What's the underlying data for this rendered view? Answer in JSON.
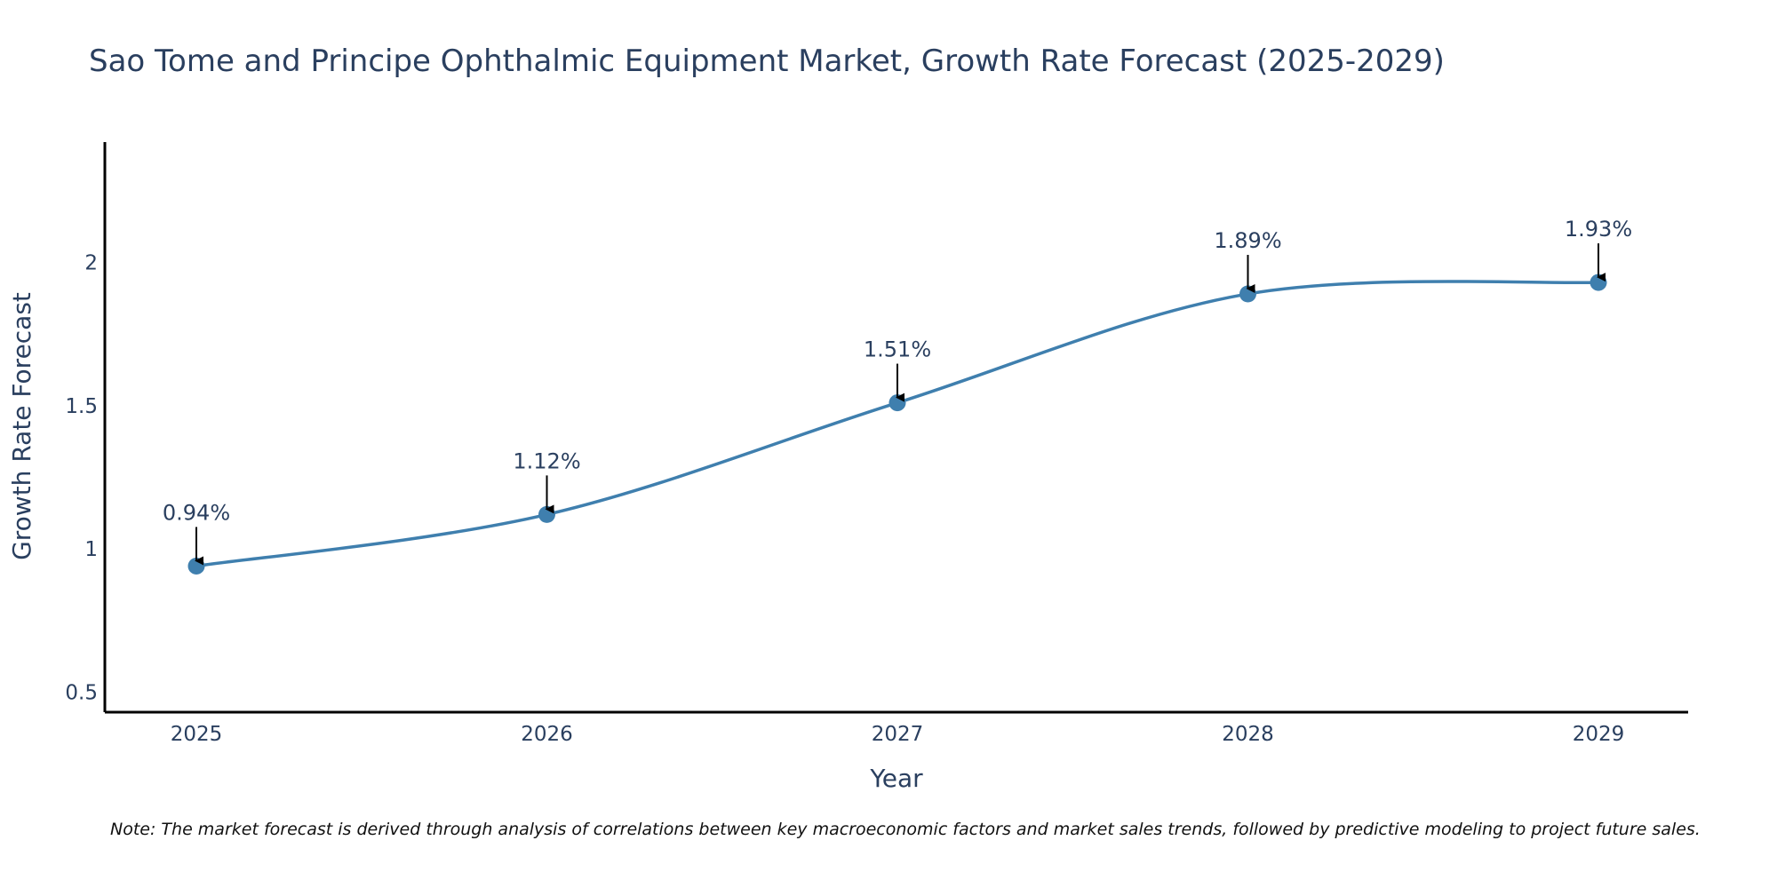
{
  "chart_data": {
    "type": "line",
    "title": "Sao Tome and Principe Ophthalmic Equipment Market, Growth Rate Forecast (2025-2029)",
    "xlabel": "Year",
    "ylabel": "Growth Rate Forecast",
    "categories": [
      "2025",
      "2026",
      "2027",
      "2028",
      "2029"
    ],
    "series": [
      {
        "name": "Growth Rate Forecast",
        "values": [
          0.94,
          1.12,
          1.51,
          1.89,
          1.93
        ]
      }
    ],
    "data_labels": [
      "0.94%",
      "1.12%",
      "1.51%",
      "1.89%",
      "1.93%"
    ],
    "y_ticks": [
      0.5,
      1,
      1.5,
      2
    ],
    "y_tick_labels": [
      "0.5",
      "1",
      "1.5",
      "2"
    ],
    "ylim": [
      0.43,
      2.42
    ],
    "grid": false,
    "line_color": "#3f7fae",
    "marker_color": "#3f7fae",
    "arrow_color": "#000000",
    "note": "Note: The market forecast is derived through analysis of correlations between key macroeconomic factors and market sales trends, followed by predictive modeling to project future sales."
  }
}
